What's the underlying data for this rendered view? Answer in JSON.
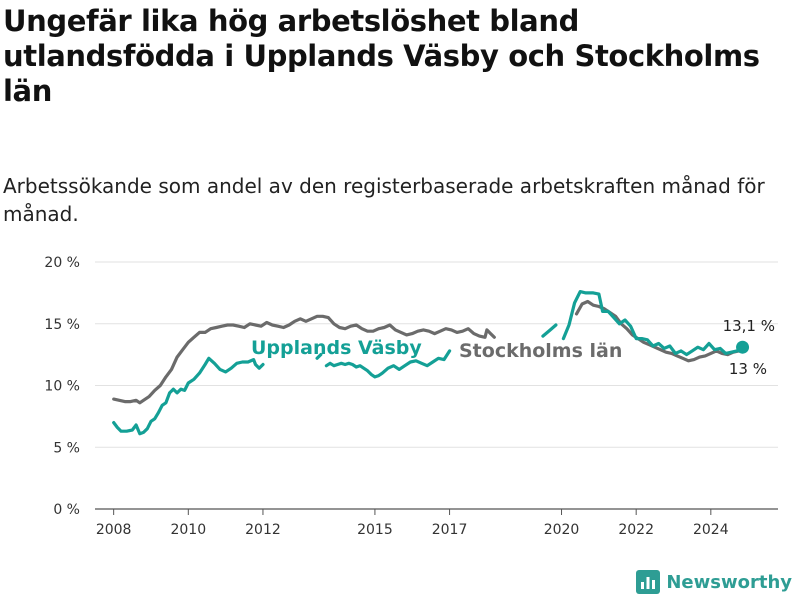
{
  "header": {
    "title": "Ungefär lika hög arbetslöshet bland utlandsfödda i Upplands Väsby och Stockholms län",
    "subtitle": "Arbetssökande som andel av den registerbaserade arbetskraften månad för månad."
  },
  "brand": {
    "name": "Newsworthy",
    "icon": "bar-chart-logo-icon"
  },
  "chart_data": {
    "type": "line",
    "ylim": [
      0,
      20
    ],
    "xlim": [
      2007.5,
      2025.8
    ],
    "y_ticks": [
      0,
      5,
      10,
      15,
      20
    ],
    "y_tick_labels": [
      "0 %",
      "5 %",
      "10 %",
      "15 %",
      "20 %"
    ],
    "x_ticks": [
      2008,
      2010,
      2012,
      2015,
      2017,
      2020,
      2022,
      2024
    ],
    "x_tick_labels": [
      "2008",
      "2010",
      "2012",
      "2015",
      "2017",
      "2020",
      "2022",
      "2024"
    ],
    "grid": "horizontal",
    "end_labels": {
      "vasby": "13,1 %",
      "lan": "13 %"
    },
    "series": [
      {
        "name": "Upplands Väsby",
        "color": "#14a096",
        "points": [
          [
            2008.0,
            7.0
          ],
          [
            2008.1,
            6.6
          ],
          [
            2008.2,
            6.3
          ],
          [
            2008.35,
            6.3
          ],
          [
            2008.5,
            6.4
          ],
          [
            2008.6,
            6.8
          ],
          [
            2008.7,
            6.1
          ],
          [
            2008.8,
            6.2
          ],
          [
            2008.9,
            6.5
          ],
          [
            2009.0,
            7.1
          ],
          [
            2009.1,
            7.3
          ],
          [
            2009.2,
            7.8
          ],
          [
            2009.3,
            8.4
          ],
          [
            2009.4,
            8.6
          ],
          [
            2009.5,
            9.4
          ],
          [
            2009.6,
            9.7
          ],
          [
            2009.7,
            9.4
          ],
          [
            2009.8,
            9.7
          ],
          [
            2009.9,
            9.6
          ],
          [
            2010.0,
            10.2
          ],
          [
            2010.15,
            10.5
          ],
          [
            2010.3,
            11.0
          ],
          [
            2010.45,
            11.7
          ],
          [
            2010.55,
            12.2
          ],
          [
            2010.7,
            11.8
          ],
          [
            2010.85,
            11.3
          ],
          [
            2011.0,
            11.1
          ],
          [
            2011.15,
            11.4
          ],
          [
            2011.3,
            11.8
          ],
          [
            2011.45,
            11.9
          ],
          [
            2011.6,
            11.9
          ],
          [
            2011.75,
            12.1
          ],
          [
            2011.8,
            11.7
          ],
          [
            2011.9,
            11.4
          ],
          [
            2012.0,
            11.7
          ],
          null,
          [
            2013.45,
            12.2
          ],
          [
            2013.55,
            12.5
          ],
          null,
          [
            2013.7,
            11.6
          ],
          [
            2013.8,
            11.8
          ],
          [
            2013.9,
            11.6
          ],
          [
            2014.0,
            11.7
          ],
          [
            2014.1,
            11.8
          ],
          [
            2014.2,
            11.7
          ],
          [
            2014.3,
            11.8
          ],
          [
            2014.4,
            11.7
          ],
          [
            2014.5,
            11.5
          ],
          [
            2014.6,
            11.6
          ],
          [
            2014.7,
            11.4
          ],
          [
            2014.8,
            11.2
          ],
          [
            2014.9,
            10.9
          ],
          [
            2015.0,
            10.7
          ],
          [
            2015.1,
            10.8
          ],
          [
            2015.2,
            11.0
          ],
          [
            2015.35,
            11.4
          ],
          [
            2015.5,
            11.6
          ],
          [
            2015.65,
            11.3
          ],
          [
            2015.8,
            11.6
          ],
          [
            2015.95,
            11.9
          ],
          [
            2016.1,
            12.0
          ],
          [
            2016.25,
            11.8
          ],
          [
            2016.4,
            11.6
          ],
          [
            2016.55,
            11.9
          ],
          [
            2016.7,
            12.2
          ],
          [
            2016.85,
            12.1
          ],
          [
            2017.0,
            12.8
          ],
          null,
          [
            2019.5,
            14.0
          ],
          [
            2019.7,
            14.5
          ],
          [
            2019.85,
            14.9
          ],
          null,
          [
            2020.05,
            13.8
          ],
          [
            2020.2,
            14.9
          ],
          [
            2020.35,
            16.7
          ],
          [
            2020.5,
            17.6
          ],
          [
            2020.65,
            17.5
          ],
          [
            2020.85,
            17.5
          ],
          [
            2021.0,
            17.4
          ],
          [
            2021.1,
            16.0
          ],
          [
            2021.25,
            16.0
          ],
          [
            2021.4,
            15.5
          ],
          [
            2021.55,
            15.0
          ],
          [
            2021.7,
            15.3
          ],
          [
            2021.85,
            14.8
          ],
          [
            2022.0,
            13.8
          ],
          [
            2022.15,
            13.8
          ],
          [
            2022.3,
            13.7
          ],
          [
            2022.45,
            13.2
          ],
          [
            2022.6,
            13.4
          ],
          [
            2022.75,
            13.0
          ],
          [
            2022.9,
            13.2
          ],
          [
            2023.05,
            12.6
          ],
          [
            2023.2,
            12.8
          ],
          [
            2023.35,
            12.5
          ],
          [
            2023.5,
            12.8
          ],
          [
            2023.65,
            13.1
          ],
          [
            2023.8,
            12.9
          ],
          [
            2023.95,
            13.4
          ],
          [
            2024.1,
            12.9
          ],
          [
            2024.25,
            13.0
          ],
          [
            2024.4,
            12.6
          ],
          [
            2024.55,
            12.7
          ],
          [
            2024.7,
            12.8
          ],
          [
            2024.85,
            13.1
          ]
        ]
      },
      {
        "name": "Stockholms län",
        "color": "#6b6b6b",
        "points": [
          [
            2008.0,
            8.9
          ],
          [
            2008.15,
            8.8
          ],
          [
            2008.3,
            8.7
          ],
          [
            2008.45,
            8.7
          ],
          [
            2008.6,
            8.8
          ],
          [
            2008.7,
            8.6
          ],
          [
            2008.8,
            8.8
          ],
          [
            2008.95,
            9.1
          ],
          [
            2009.1,
            9.6
          ],
          [
            2009.25,
            10.0
          ],
          [
            2009.4,
            10.7
          ],
          [
            2009.55,
            11.3
          ],
          [
            2009.7,
            12.3
          ],
          [
            2009.85,
            12.9
          ],
          [
            2010.0,
            13.5
          ],
          [
            2010.15,
            13.9
          ],
          [
            2010.3,
            14.3
          ],
          [
            2010.45,
            14.3
          ],
          [
            2010.6,
            14.6
          ],
          [
            2010.75,
            14.7
          ],
          [
            2010.9,
            14.8
          ],
          [
            2011.05,
            14.9
          ],
          [
            2011.2,
            14.9
          ],
          [
            2011.35,
            14.8
          ],
          [
            2011.5,
            14.7
          ],
          [
            2011.65,
            15.0
          ],
          [
            2011.8,
            14.9
          ],
          [
            2011.95,
            14.8
          ],
          [
            2012.1,
            15.1
          ],
          [
            2012.25,
            14.9
          ],
          [
            2012.4,
            14.8
          ],
          [
            2012.55,
            14.7
          ],
          [
            2012.7,
            14.9
          ],
          [
            2012.85,
            15.2
          ],
          [
            2013.0,
            15.4
          ],
          [
            2013.15,
            15.2
          ],
          [
            2013.3,
            15.4
          ],
          [
            2013.45,
            15.6
          ],
          [
            2013.6,
            15.6
          ],
          [
            2013.75,
            15.5
          ],
          [
            2013.9,
            15.0
          ],
          [
            2014.05,
            14.7
          ],
          [
            2014.2,
            14.6
          ],
          [
            2014.35,
            14.8
          ],
          [
            2014.5,
            14.9
          ],
          [
            2014.65,
            14.6
          ],
          [
            2014.8,
            14.4
          ],
          [
            2014.95,
            14.4
          ],
          [
            2015.1,
            14.6
          ],
          [
            2015.25,
            14.7
          ],
          [
            2015.4,
            14.9
          ],
          [
            2015.55,
            14.5
          ],
          [
            2015.7,
            14.3
          ],
          [
            2015.85,
            14.1
          ],
          [
            2016.0,
            14.2
          ],
          [
            2016.15,
            14.4
          ],
          [
            2016.3,
            14.5
          ],
          [
            2016.45,
            14.4
          ],
          [
            2016.6,
            14.2
          ],
          [
            2016.75,
            14.4
          ],
          [
            2016.9,
            14.6
          ],
          [
            2017.05,
            14.5
          ],
          [
            2017.2,
            14.3
          ],
          [
            2017.35,
            14.4
          ],
          [
            2017.5,
            14.6
          ],
          [
            2017.65,
            14.2
          ],
          [
            2017.8,
            14.0
          ],
          [
            2017.95,
            13.9
          ],
          [
            2018.0,
            14.5
          ],
          [
            2018.1,
            14.2
          ],
          [
            2018.2,
            13.9
          ],
          null,
          [
            2020.4,
            15.8
          ],
          [
            2020.55,
            16.6
          ],
          [
            2020.7,
            16.8
          ],
          [
            2020.85,
            16.5
          ],
          [
            2021.0,
            16.4
          ],
          [
            2021.15,
            16.2
          ],
          [
            2021.3,
            15.9
          ],
          [
            2021.45,
            15.6
          ],
          [
            2021.6,
            15.0
          ],
          [
            2021.75,
            14.6
          ],
          [
            2021.9,
            14.1
          ],
          [
            2022.05,
            13.8
          ],
          [
            2022.2,
            13.5
          ],
          [
            2022.35,
            13.3
          ],
          [
            2022.5,
            13.1
          ],
          [
            2022.65,
            12.9
          ],
          [
            2022.8,
            12.7
          ],
          [
            2022.95,
            12.6
          ],
          [
            2023.1,
            12.4
          ],
          [
            2023.25,
            12.2
          ],
          [
            2023.4,
            12.0
          ],
          [
            2023.55,
            12.1
          ],
          [
            2023.7,
            12.3
          ],
          [
            2023.85,
            12.4
          ],
          [
            2024.0,
            12.6
          ],
          [
            2024.15,
            12.8
          ],
          [
            2024.3,
            12.6
          ],
          [
            2024.45,
            12.5
          ],
          [
            2024.6,
            12.7
          ],
          [
            2024.75,
            12.8
          ],
          [
            2024.85,
            13.0
          ]
        ]
      }
    ]
  }
}
